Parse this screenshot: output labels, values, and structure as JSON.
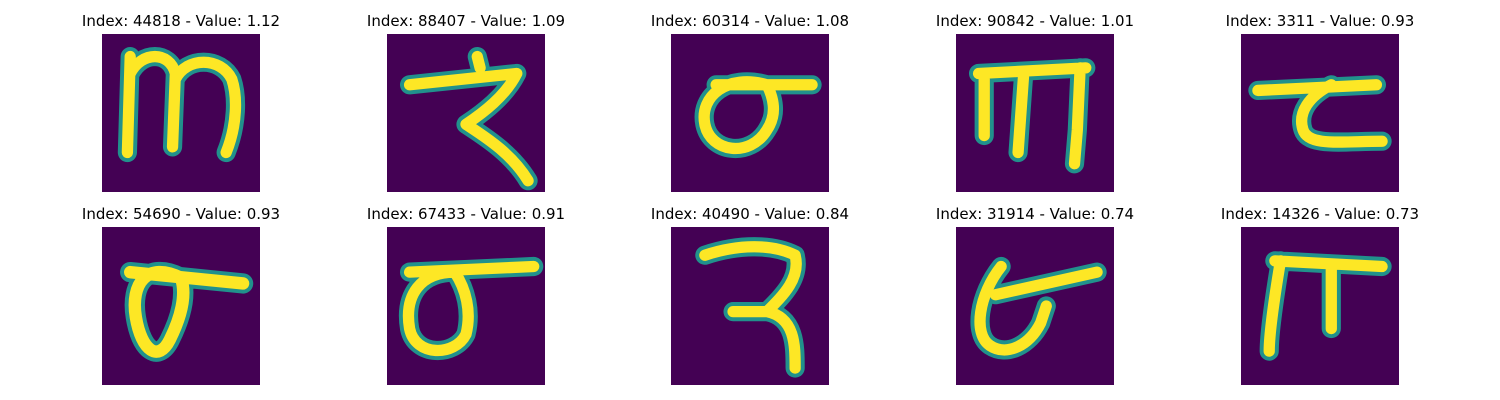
{
  "colors": {
    "background": "#440154",
    "mid_stroke": "#21918c",
    "stroke": "#fde725"
  },
  "panels": [
    {
      "title": "Index: 44818 - Value: 1.12",
      "glyph": "m-shape"
    },
    {
      "title": "Index: 88407 - Value: 1.09",
      "glyph": "ra-shape"
    },
    {
      "title": "Index: 60314 - Value: 1.08",
      "glyph": "va-shape"
    },
    {
      "title": "Index: 90842 - Value: 1.01",
      "glyph": "m-shape"
    },
    {
      "title": "Index: 3311 - Value: 0.93",
      "glyph": "ta-shape"
    },
    {
      "title": "Index: 54690 - Value: 0.93",
      "glyph": "va-shape"
    },
    {
      "title": "Index: 67433 - Value: 0.91",
      "glyph": "va-shape"
    },
    {
      "title": "Index: 40490 - Value: 0.84",
      "glyph": "ra-shape"
    },
    {
      "title": "Index: 31914 - Value: 0.74",
      "glyph": "ta-shape"
    },
    {
      "title": "Index: 14326 - Value: 0.73",
      "glyph": "pi-shape"
    }
  ]
}
